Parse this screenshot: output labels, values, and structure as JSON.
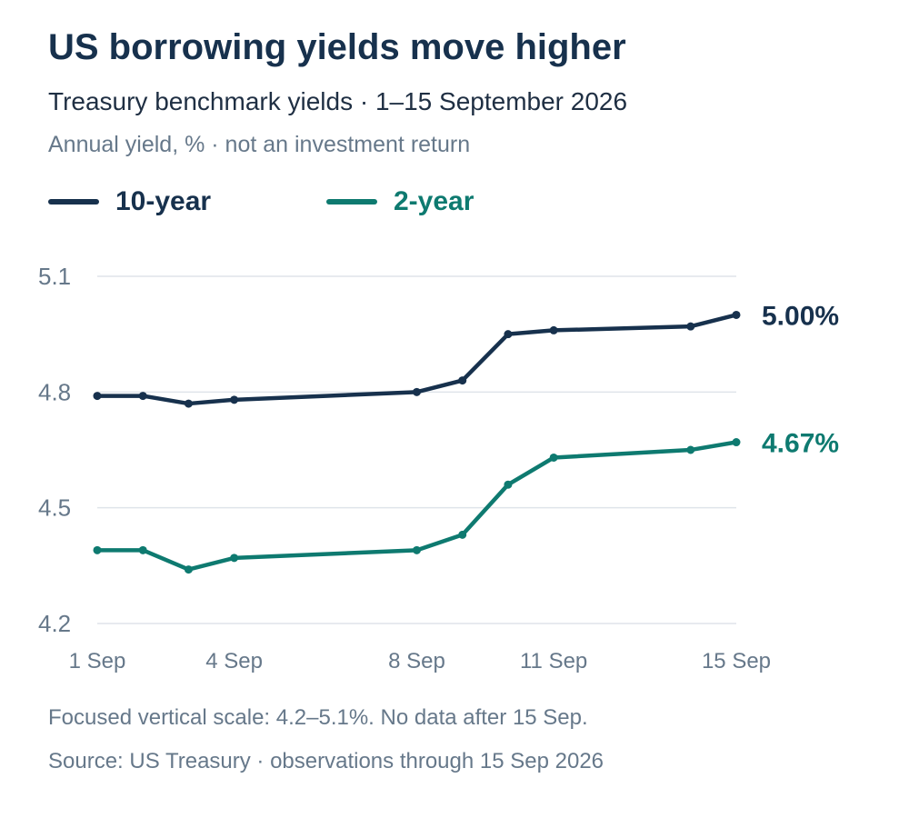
{
  "header": {
    "title": "US borrowing yields move higher",
    "subtitle": "Treasury benchmark yields · 1–15 September 2026",
    "note": "Annual yield, % · not an investment return"
  },
  "colors": {
    "ten_year": "#17314d",
    "two_year": "#0e7a70",
    "grid": "#dfe4ea",
    "tick": "#66788a"
  },
  "footer": {
    "footnote": "Focused vertical scale: 4.2–5.1%. No data after 15 Sep.",
    "source": "Source: US Treasury · observations through 15 Sep 2026"
  },
  "chart_data": {
    "type": "line",
    "title": "US borrowing yields move higher",
    "subtitle": "Treasury benchmark yields · 1–15 September 2026",
    "ylabel": "Annual yield, %",
    "xlabel": "",
    "ylim": [
      4.2,
      5.1
    ],
    "y_ticks": [
      {
        "value": 5.1,
        "label": "5.1"
      },
      {
        "value": 4.8,
        "label": "4.8"
      },
      {
        "value": 4.5,
        "label": "4.5"
      },
      {
        "value": 4.2,
        "label": "4.2"
      }
    ],
    "x_ticks": [
      {
        "day": 1,
        "label": "1 Sep"
      },
      {
        "day": 4,
        "label": "4 Sep"
      },
      {
        "day": 8,
        "label": "8 Sep"
      },
      {
        "day": 11,
        "label": "11 Sep"
      },
      {
        "day": 15,
        "label": "15 Sep"
      }
    ],
    "grid": true,
    "legend_position": "top-left",
    "series": [
      {
        "name": "10-year",
        "color": "#17314d",
        "end_label": "5.00%",
        "points": [
          {
            "day": 1,
            "value": 4.79
          },
          {
            "day": 2,
            "value": 4.79
          },
          {
            "day": 3,
            "value": 4.77
          },
          {
            "day": 4,
            "value": 4.78
          },
          {
            "day": 8,
            "value": 4.8
          },
          {
            "day": 9,
            "value": 4.83
          },
          {
            "day": 10,
            "value": 4.95
          },
          {
            "day": 11,
            "value": 4.96
          },
          {
            "day": 14,
            "value": 4.97
          },
          {
            "day": 15,
            "value": 5.0
          }
        ]
      },
      {
        "name": "2-year",
        "color": "#0e7a70",
        "end_label": "4.67%",
        "points": [
          {
            "day": 1,
            "value": 4.39
          },
          {
            "day": 2,
            "value": 4.39
          },
          {
            "day": 3,
            "value": 4.34
          },
          {
            "day": 4,
            "value": 4.37
          },
          {
            "day": 8,
            "value": 4.39
          },
          {
            "day": 9,
            "value": 4.43
          },
          {
            "day": 10,
            "value": 4.56
          },
          {
            "day": 11,
            "value": 4.63
          },
          {
            "day": 14,
            "value": 4.65
          },
          {
            "day": 15,
            "value": 4.67
          }
        ]
      }
    ]
  }
}
